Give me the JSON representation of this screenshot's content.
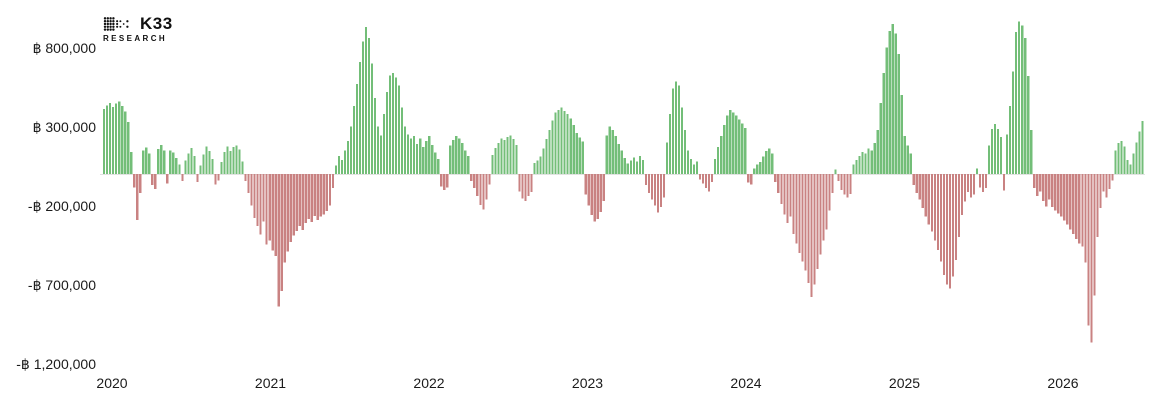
{
  "brand": {
    "name": "K33",
    "sub": "RESEARCH"
  },
  "chart_data": {
    "type": "bar",
    "title": "",
    "subtitle": "",
    "currency_symbol": "฿",
    "x_unit": "week",
    "x_tick_labels": [
      "2020",
      "2021",
      "2022",
      "2023",
      "2024",
      "2025",
      "2026"
    ],
    "y_ticks": [
      {
        "label": "฿ 800,000",
        "value": 800000
      },
      {
        "label": "฿ 300,000",
        "value": 300000
      },
      {
        "label": "-฿ 200,000",
        "value": -200000
      },
      {
        "label": "-฿ 700,000",
        "value": -700000
      },
      {
        "label": "-฿ 1,200,000",
        "value": -1200000
      }
    ],
    "ylim": [
      -1200000,
      1000000
    ],
    "gridlines": false,
    "legend": null,
    "bar_colors": {
      "positive": "#73be78",
      "negative": "#c98282"
    },
    "values": [
      410000,
      435000,
      450000,
      425000,
      445000,
      460000,
      430000,
      395000,
      330000,
      140000,
      -85000,
      -290000,
      -120000,
      150000,
      168000,
      130000,
      -70000,
      -95000,
      158000,
      185000,
      148000,
      -60000,
      150000,
      135000,
      100000,
      60000,
      -45000,
      85000,
      130000,
      165000,
      115000,
      -50000,
      55000,
      125000,
      175000,
      145000,
      95000,
      -65000,
      -40000,
      75000,
      140000,
      175000,
      145000,
      170000,
      180000,
      155000,
      80000,
      -45000,
      -120000,
      -200000,
      -277000,
      -330000,
      -384000,
      -300000,
      -447000,
      -420000,
      -484000,
      -520000,
      -840000,
      -740000,
      -560000,
      -490000,
      -430000,
      -390000,
      -360000,
      -330000,
      -355000,
      -310000,
      -285000,
      -305000,
      -265000,
      -290000,
      -270000,
      -255000,
      -235000,
      -200000,
      -90000,
      55000,
      115000,
      90000,
      150000,
      210000,
      300000,
      430000,
      570000,
      710000,
      840000,
      930000,
      860000,
      700000,
      480000,
      300000,
      245000,
      380000,
      520000,
      625000,
      640000,
      610000,
      560000,
      420000,
      300000,
      250000,
      225000,
      240000,
      190000,
      225000,
      170000,
      210000,
      240000,
      185000,
      135000,
      95000,
      -80000,
      -100000,
      -85000,
      180000,
      215000,
      240000,
      225000,
      195000,
      150000,
      115000,
      -45000,
      -90000,
      -140000,
      -195000,
      -225000,
      -160000,
      -65000,
      120000,
      165000,
      195000,
      225000,
      215000,
      235000,
      245000,
      220000,
      185000,
      -110000,
      -155000,
      -170000,
      -140000,
      -115000,
      70000,
      85000,
      110000,
      160000,
      220000,
      280000,
      340000,
      390000,
      405000,
      420000,
      400000,
      380000,
      350000,
      310000,
      260000,
      230000,
      205000,
      -130000,
      -200000,
      -260000,
      -300000,
      -285000,
      -240000,
      -170000,
      245000,
      300000,
      280000,
      240000,
      190000,
      150000,
      100000,
      65000,
      85000,
      105000,
      80000,
      115000,
      90000,
      -70000,
      -120000,
      -160000,
      -200000,
      -245000,
      -210000,
      -150000,
      200000,
      380000,
      540000,
      585000,
      560000,
      420000,
      280000,
      150000,
      95000,
      60000,
      80000,
      -35000,
      -60000,
      -90000,
      -110000,
      -50000,
      95000,
      170000,
      240000,
      310000,
      370000,
      405000,
      390000,
      370000,
      345000,
      320000,
      290000,
      -55000,
      -65000,
      35000,
      60000,
      75000,
      110000,
      145000,
      160000,
      130000,
      -50000,
      -120000,
      -190000,
      -255000,
      -310000,
      -270000,
      -380000,
      -440000,
      -500000,
      -555000,
      -610000,
      -690000,
      -780000,
      -700000,
      -600000,
      -510000,
      -420000,
      -350000,
      -230000,
      -120000,
      30000,
      -45000,
      -100000,
      -130000,
      -150000,
      -125000,
      60000,
      90000,
      115000,
      140000,
      130000,
      160000,
      150000,
      195000,
      280000,
      450000,
      640000,
      800000,
      905000,
      950000,
      890000,
      760000,
      500000,
      240000,
      180000,
      130000,
      -70000,
      -120000,
      -160000,
      -215000,
      -270000,
      -320000,
      -365000,
      -420000,
      -480000,
      -555000,
      -640000,
      -700000,
      -725000,
      -650000,
      -545000,
      -400000,
      -260000,
      -175000,
      -115000,
      -150000,
      -130000,
      35000,
      -85000,
      -115000,
      -90000,
      180000,
      285000,
      315000,
      285000,
      235000,
      -105000,
      250000,
      430000,
      650000,
      900000,
      965000,
      940000,
      860000,
      620000,
      280000,
      -90000,
      -140000,
      -110000,
      -170000,
      -205000,
      -160000,
      -210000,
      -230000,
      -250000,
      -270000,
      -295000,
      -320000,
      -350000,
      -380000,
      -410000,
      -440000,
      -460000,
      -560000,
      -960000,
      -1065000,
      -770000,
      -400000,
      -215000,
      -110000,
      -150000,
      -95000,
      -40000,
      150000,
      195000,
      210000,
      175000,
      90000,
      60000,
      130000,
      200000,
      270000,
      335000
    ]
  }
}
